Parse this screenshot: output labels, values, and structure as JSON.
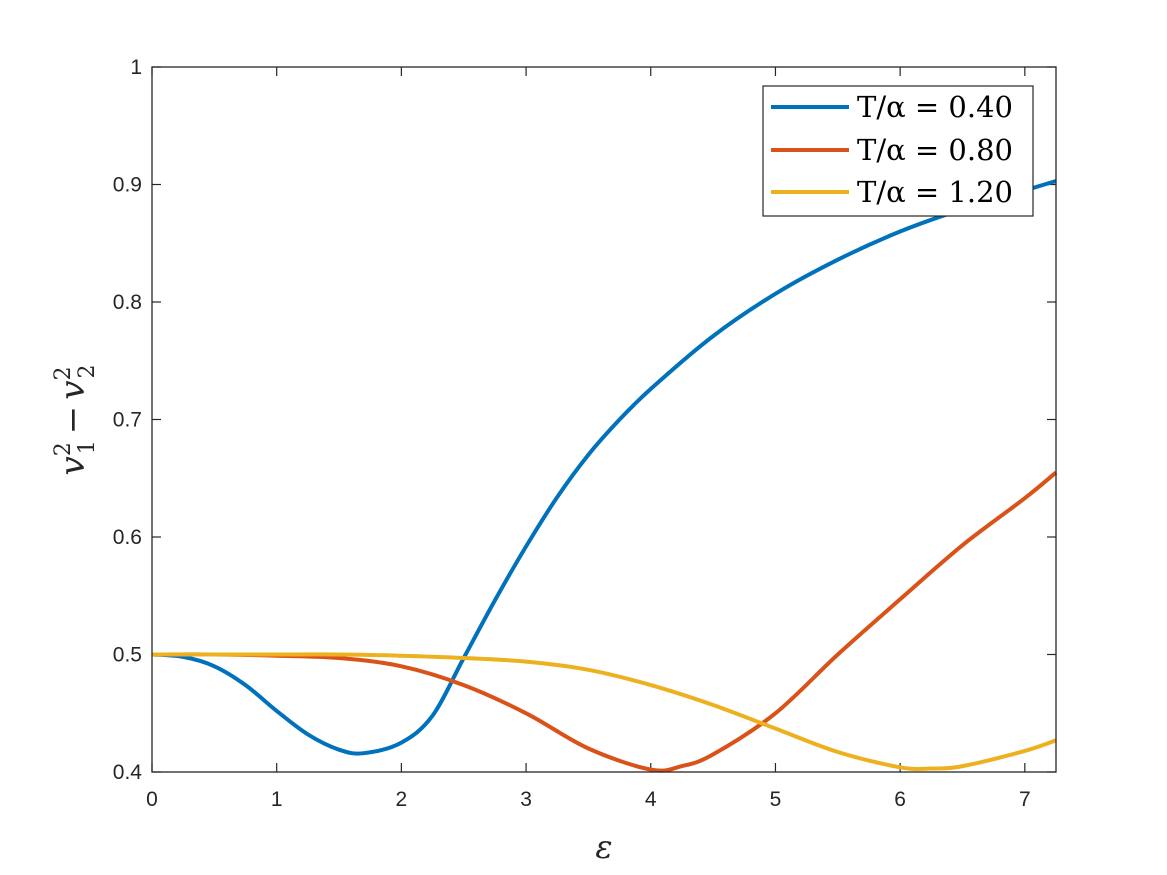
{
  "chart_data": {
    "type": "line",
    "title": "",
    "xlabel": "ε",
    "ylabel": {
      "base": "v",
      "sub1": "1",
      "sup1": "2",
      "op": "−",
      "sub2": "2",
      "sup2": "2"
    },
    "xlim": [
      0,
      7.25
    ],
    "ylim": [
      0.4,
      1.0
    ],
    "xticks": [
      0,
      1,
      2,
      3,
      4,
      5,
      6,
      7
    ],
    "yticks": [
      0.4,
      0.5,
      0.6,
      0.7,
      0.8,
      0.9,
      1.0
    ],
    "ytick_labels": [
      "0.4",
      "0.5",
      "0.6",
      "0.7",
      "0.8",
      "0.9",
      "1"
    ],
    "grid": false,
    "box": true,
    "legend_position": "top-right",
    "series": [
      {
        "name": "T/α = 0.40",
        "color": "#0072BD",
        "x": [
          0,
          0.25,
          0.5,
          0.75,
          1.0,
          1.25,
          1.5,
          1.7,
          2.0,
          2.25,
          2.5,
          2.75,
          3.0,
          3.25,
          3.5,
          3.75,
          4.0,
          4.5,
          5.0,
          5.5,
          6.0,
          6.5,
          7.0,
          7.25
        ],
        "y": [
          0.5,
          0.498,
          0.49,
          0.474,
          0.452,
          0.432,
          0.419,
          0.416,
          0.425,
          0.448,
          0.497,
          0.546,
          0.592,
          0.634,
          0.67,
          0.7,
          0.726,
          0.771,
          0.807,
          0.836,
          0.86,
          0.879,
          0.895,
          0.903
        ]
      },
      {
        "name": "T/α = 0.80",
        "color": "#D95319",
        "x": [
          0,
          0.5,
          1.0,
          1.5,
          2.0,
          2.5,
          3.0,
          3.5,
          4.0,
          4.25,
          4.5,
          5.0,
          5.5,
          6.0,
          6.5,
          7.0,
          7.25
        ],
        "y": [
          0.5,
          0.5,
          0.499,
          0.497,
          0.49,
          0.474,
          0.45,
          0.42,
          0.402,
          0.405,
          0.415,
          0.45,
          0.5,
          0.547,
          0.593,
          0.633,
          0.655
        ]
      },
      {
        "name": "T/α = 1.20",
        "color": "#EDB120",
        "x": [
          0,
          0.5,
          1.0,
          1.5,
          2.0,
          2.5,
          3.0,
          3.5,
          4.0,
          4.5,
          5.0,
          5.5,
          6.0,
          6.25,
          6.5,
          7.0,
          7.25
        ],
        "y": [
          0.5,
          0.5,
          0.5,
          0.5,
          0.499,
          0.497,
          0.494,
          0.487,
          0.474,
          0.457,
          0.437,
          0.417,
          0.404,
          0.403,
          0.405,
          0.418,
          0.427
        ]
      }
    ]
  }
}
